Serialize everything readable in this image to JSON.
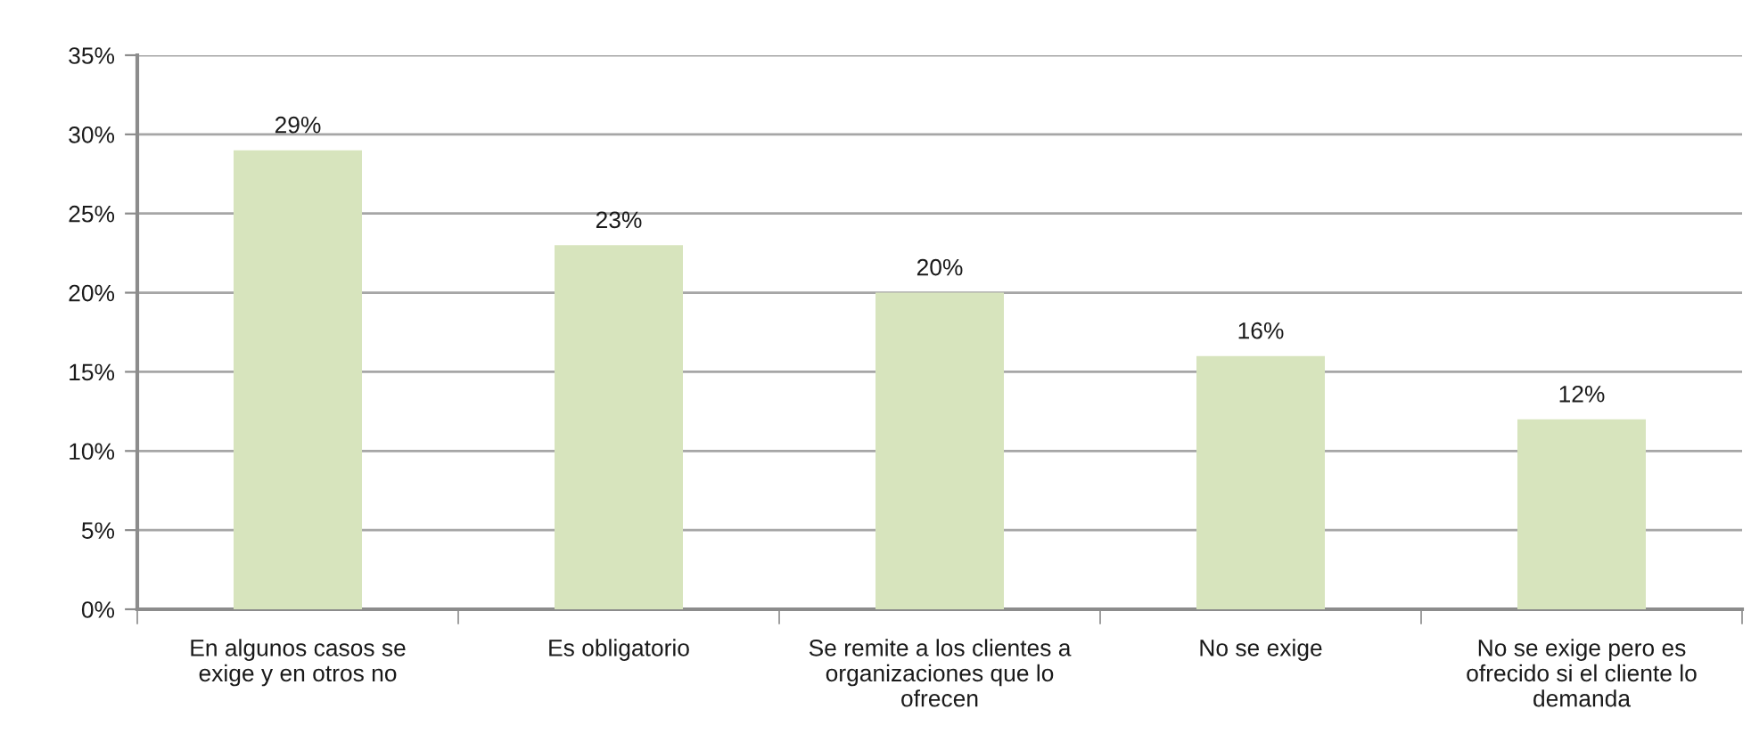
{
  "chart_data": {
    "type": "bar",
    "categories": [
      "En algunos casos se exige y en otros no",
      "Es obligatorio",
      "Se remite a los clientes a organizaciones que lo ofrecen",
      "No se exige",
      "No se exige pero es ofrecido si el cliente lo demanda"
    ],
    "values": [
      29,
      23,
      20,
      16,
      12
    ],
    "color": "#d7e4bd",
    "value_labels": [
      "29%",
      "23%",
      "20%",
      "16%",
      "12%"
    ],
    "ylim": [
      0,
      35
    ],
    "yticks": [
      {
        "value": 0,
        "label": "0%"
      },
      {
        "value": 5,
        "label": "5%"
      },
      {
        "value": 10,
        "label": "10%"
      },
      {
        "value": 15,
        "label": "15%"
      },
      {
        "value": 20,
        "label": "20%"
      },
      {
        "value": 25,
        "label": "25%"
      },
      {
        "value": 30,
        "label": "30%"
      },
      {
        "value": 35,
        "label": "35%"
      }
    ],
    "grid": "y"
  }
}
